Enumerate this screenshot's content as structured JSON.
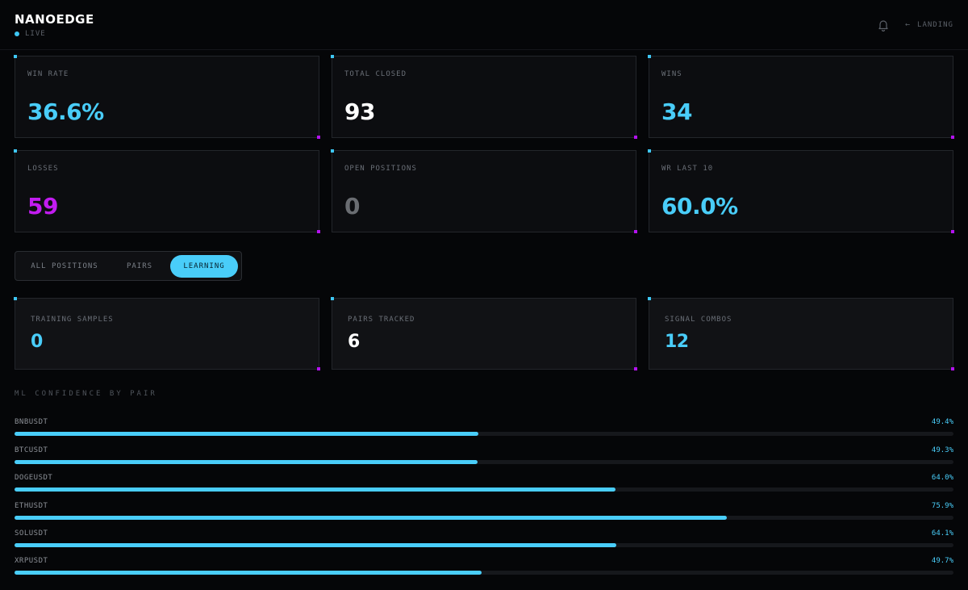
{
  "header": {
    "brand": "NANOEDGE",
    "status": "LIVE",
    "nav_back": "LANDING"
  },
  "stats": {
    "win_rate": {
      "label": "WIN RATE",
      "value": "36.6%",
      "color": "#49cdf9"
    },
    "total_closed": {
      "label": "TOTAL CLOSED",
      "value": "93",
      "color": "#ffffff"
    },
    "wins": {
      "label": "WINS",
      "value": "34",
      "color": "#49cdf9"
    },
    "losses": {
      "label": "LOSSES",
      "value": "59",
      "color": "#c21cf0"
    },
    "open_positions": {
      "label": "OPEN POSITIONS",
      "value": "0",
      "color": "#6a6d72"
    },
    "wr_last_10": {
      "label": "WR LAST 10",
      "value": "60.0%",
      "color": "#49cdf9"
    }
  },
  "tabs": [
    {
      "label": "ALL POSITIONS",
      "active": false
    },
    {
      "label": "PAIRS",
      "active": false
    },
    {
      "label": "LEARNING",
      "active": true
    }
  ],
  "learning": {
    "training_samples": {
      "label": "TRAINING SAMPLES",
      "value": "0",
      "color": "#49cdf9"
    },
    "pairs_tracked": {
      "label": "PAIRS TRACKED",
      "value": "6",
      "color": "#ffffff"
    },
    "signal_combos": {
      "label": "SIGNAL COMBOS",
      "value": "12",
      "color": "#49cdf9"
    }
  },
  "confidence": {
    "title": "ML CONFIDENCE BY PAIR",
    "pairs": [
      {
        "name": "BNBUSDT",
        "pct_label": "49.4%",
        "value": 49.4
      },
      {
        "name": "BTCUSDT",
        "pct_label": "49.3%",
        "value": 49.3
      },
      {
        "name": "DOGEUSDT",
        "pct_label": "64.0%",
        "value": 64.0
      },
      {
        "name": "ETHUSDT",
        "pct_label": "75.9%",
        "value": 75.9
      },
      {
        "name": "SOLUSDT",
        "pct_label": "64.1%",
        "value": 64.1
      },
      {
        "name": "XRPUSDT",
        "pct_label": "49.7%",
        "value": 49.7
      }
    ]
  },
  "icons": {
    "bell": "bell-icon",
    "back": "arrow-left-icon",
    "live": "live-dot-icon"
  }
}
